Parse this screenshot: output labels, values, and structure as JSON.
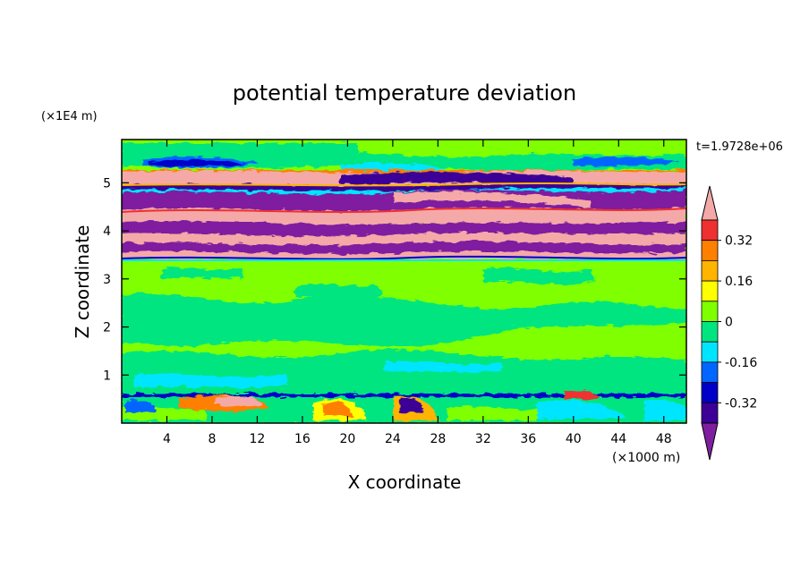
{
  "chart_data": {
    "type": "heatmap",
    "title": "potential temperature deviation",
    "xlabel": "X coordinate",
    "ylabel": "Z coordinate",
    "x_unit": "(×1000 m)",
    "y_unit": "(×1E4 m)",
    "time_label": "t=1.9728e+06",
    "xlim": [
      0,
      50
    ],
    "ylim": [
      0,
      5.9
    ],
    "x_ticks": [
      4,
      8,
      12,
      16,
      20,
      24,
      28,
      32,
      36,
      40,
      44,
      48
    ],
    "y_ticks": [
      1,
      2,
      3,
      4,
      5
    ],
    "grid": false,
    "colorbar": {
      "placement": "right",
      "tick_labels": [
        "0.32",
        "0.16",
        "0",
        "-0.16",
        "-0.32"
      ],
      "tick_values": [
        0.32,
        0.16,
        0,
        -0.16,
        -0.32
      ],
      "levels": [
        {
          "value": "> 0.40",
          "color": "#f4a9a8"
        },
        {
          "value": "0.32 to 0.40",
          "color": "#ee3030"
        },
        {
          "value": "0.24 to 0.32",
          "color": "#ff7f00"
        },
        {
          "value": "0.16 to 0.24",
          "color": "#ffb400"
        },
        {
          "value": "0.08 to 0.16",
          "color": "#ffff00"
        },
        {
          "value": "0 to 0.08",
          "color": "#7fff00"
        },
        {
          "value": "-0.08 to 0",
          "color": "#00e57f"
        },
        {
          "value": "-0.16 to -0.08",
          "color": "#00e5ff"
        },
        {
          "value": "-0.24 to -0.16",
          "color": "#0066ff"
        },
        {
          "value": "-0.32 to -0.24",
          "color": "#0000c8"
        },
        {
          "value": "-0.40 to -0.32",
          "color": "#3c0096"
        },
        {
          "value": "< -0.40",
          "color": "#7f1fa0"
        }
      ]
    },
    "bands": [
      {
        "z_bottom": 0.0,
        "z_top": 0.6,
        "level": "mixed (-0.4 to 0.4, turbulent boundary layer)"
      },
      {
        "z_bottom": 0.6,
        "z_top": 3.45,
        "level": "-0.08 to 0.08 (weak noise)"
      },
      {
        "z_bottom": 3.45,
        "z_top": 3.6,
        "level": "< -0.40"
      },
      {
        "z_bottom": 3.6,
        "z_top": 3.85,
        "level": "> 0.40"
      },
      {
        "z_bottom": 3.85,
        "z_top": 4.15,
        "level": "< -0.40"
      },
      {
        "z_bottom": 4.15,
        "z_top": 4.35,
        "level": "> 0.40"
      },
      {
        "z_bottom": 4.35,
        "z_top": 4.7,
        "level": "< -0.40"
      },
      {
        "z_bottom": 4.7,
        "z_top": 4.95,
        "level": "> 0.40"
      },
      {
        "z_bottom": 4.95,
        "z_top": 5.1,
        "level": "< -0.40"
      },
      {
        "z_bottom": 5.1,
        "z_top": 5.4,
        "level": "> 0.40"
      },
      {
        "z_bottom": 5.4,
        "z_top": 5.9,
        "level": "mixed near 0"
      }
    ]
  }
}
